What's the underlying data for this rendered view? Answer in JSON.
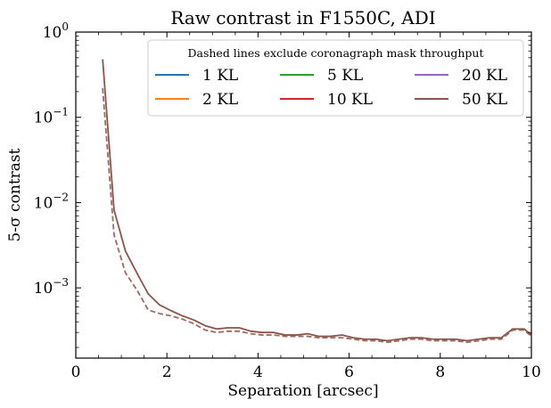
{
  "chart_data": {
    "type": "line",
    "title": "Raw contrast in F1550C, ADI",
    "xlabel": "Separation [arcsec]",
    "ylabel": "5-σ contrast",
    "xlim": [
      0,
      10
    ],
    "ylim": [
      0.00015,
      1
    ],
    "yscale": "log",
    "x_ticks": [
      0,
      2,
      4,
      6,
      8,
      10
    ],
    "x_tick_labels": [
      "0",
      "2",
      "4",
      "6",
      "8",
      "10"
    ],
    "y_ticks": [
      0.001,
      0.01,
      0.1,
      1
    ],
    "y_tick_labels": [
      {
        "base": "10",
        "exp": "−3"
      },
      {
        "base": "10",
        "exp": "−2"
      },
      {
        "base": "10",
        "exp": "−1"
      },
      {
        "base": "10",
        "exp": "0"
      }
    ],
    "grid": false,
    "legend": {
      "title": "Dashed lines exclude coronagraph mask throughput",
      "position": "top-right",
      "columns": 3
    },
    "x": [
      0.59,
      0.84,
      1.09,
      1.34,
      1.59,
      1.84,
      2.09,
      2.34,
      2.59,
      2.84,
      3.09,
      3.34,
      3.59,
      3.84,
      4.09,
      4.34,
      4.59,
      4.84,
      5.09,
      5.34,
      5.59,
      5.84,
      6.09,
      6.34,
      6.59,
      6.84,
      7.09,
      7.34,
      7.59,
      7.84,
      8.09,
      8.34,
      8.59,
      8.84,
      9.09,
      9.34,
      9.59,
      9.84,
      10.0
    ],
    "series": [
      {
        "name": "1 KL",
        "color": "#1f77b4",
        "style": "solid"
      },
      {
        "name": "2 KL",
        "color": "#ff7f0e",
        "style": "solid"
      },
      {
        "name": "5 KL",
        "color": "#2ca02c",
        "style": "solid"
      },
      {
        "name": "10 KL",
        "color": "#d62728",
        "style": "solid"
      },
      {
        "name": "20 KL",
        "color": "#9467bd",
        "style": "solid"
      },
      {
        "name": "50 KL",
        "color": "#8c564b",
        "style": "solid",
        "values": [
          0.48,
          0.0082,
          0.0027,
          0.0015,
          0.00085,
          0.00063,
          0.00054,
          0.00047,
          0.00042,
          0.00036,
          0.00033,
          0.00034,
          0.00034,
          0.00031,
          0.0003,
          0.0003,
          0.00028,
          0.00028,
          0.00029,
          0.00027,
          0.00027,
          0.00028,
          0.00026,
          0.00025,
          0.00025,
          0.00024,
          0.00025,
          0.00026,
          0.00026,
          0.00025,
          0.00025,
          0.00025,
          0.00024,
          0.00025,
          0.00026,
          0.00026,
          0.00033,
          0.00033,
          0.00028
        ]
      }
    ],
    "dashed_series": [
      {
        "color": "#a06a60",
        "style": "dashed",
        "values": [
          0.22,
          0.0042,
          0.0015,
          0.00095,
          0.00055,
          0.0005,
          0.00047,
          0.00043,
          0.00038,
          0.00032,
          0.0003,
          0.00031,
          0.00031,
          0.00029,
          0.00028,
          0.00028,
          0.00027,
          0.00027,
          0.00027,
          0.00026,
          0.00026,
          0.00026,
          0.00025,
          0.00024,
          0.00024,
          0.00023,
          0.00024,
          0.00025,
          0.00025,
          0.00024,
          0.00024,
          0.00024,
          0.00023,
          0.00024,
          0.00025,
          0.00025,
          0.00032,
          0.00032,
          0.00027
        ]
      }
    ]
  }
}
